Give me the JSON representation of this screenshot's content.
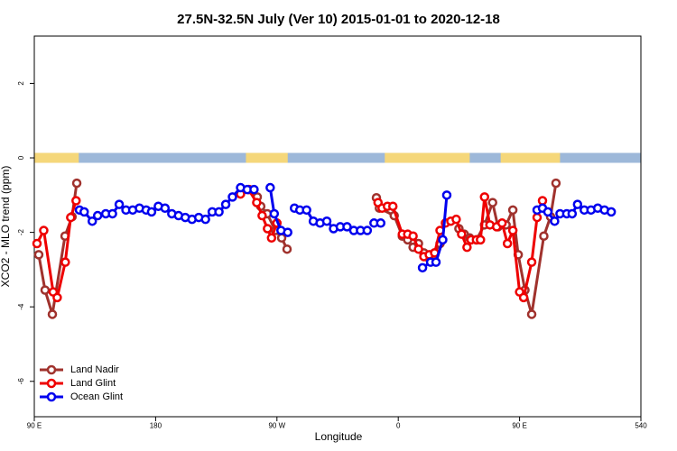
{
  "chart_data": {
    "type": "line",
    "title": "27.5N-32.5N July (Ver 10)   2015-01-01 to 2020-12-18",
    "x_label": "Longitude",
    "y_label": "XCO2 - MLO trend (ppm)",
    "xlim": [
      90,
      540
    ],
    "ylim": [
      -6.95,
      3.27
    ],
    "xticks": [
      {
        "value": 90,
        "label": "90 E"
      },
      180,
      {
        "value": 270,
        "label": "90 W"
      },
      {
        "value": 360,
        "label": "0"
      },
      {
        "value": 450,
        "label": "90 E"
      },
      540
    ],
    "yticks": [
      2,
      0,
      -2,
      -4,
      -6
    ],
    "legend": "lower left",
    "surface_band": {
      "ocean_color": "#9db8d9",
      "land_color": "#f5d77a",
      "land": [
        [
          90,
          123
        ],
        [
          247,
          278
        ],
        [
          350,
          413
        ],
        [
          436,
          480
        ]
      ]
    },
    "series": [
      {
        "name": "Land Nadir",
        "color": "#a0322d",
        "x": [
          93.3,
          98,
          103.4,
          112.8,
          118,
          121.5,
          null,
          249.4,
          255.4,
          258,
          262.8,
          268.8,
          273.5,
          277.5,
          null,
          343.8,
          346,
          357,
          363,
          367,
          371,
          375,
          379,
          383,
          387,
          391,
          null,
          405,
          409,
          413,
          418,
          424,
          430,
          434,
          440,
          445,
          449,
          454,
          459,
          468,
          473,
          477
        ],
        "values": [
          -2.6,
          -3.55,
          -4.2,
          -2.1,
          -1.58,
          -0.68,
          null,
          -0.85,
          -1.05,
          -1.3,
          -1.5,
          -1.95,
          -2.15,
          -2.45,
          null,
          -1.07,
          -1.35,
          -1.55,
          -2.1,
          -2.2,
          -2.4,
          -2.3,
          -2.55,
          -2.7,
          -2.55,
          -2.3,
          null,
          -1.9,
          -2.05,
          -2.15,
          -2.2,
          -1.8,
          -1.2,
          -1.85,
          -1.8,
          -1.4,
          -2.6,
          -3.55,
          -4.2,
          -2.1,
          -1.58,
          -0.68
        ]
      },
      {
        "name": "Land Glint",
        "color": "#ee0000",
        "x": [
          92,
          97,
          104,
          107,
          113,
          117,
          121,
          null,
          243,
          249,
          255,
          259,
          263,
          266,
          270,
          null,
          345,
          348,
          352,
          356,
          363,
          367,
          371,
          375,
          379,
          383,
          387,
          391,
          395,
          399,
          403,
          407,
          411,
          414,
          418,
          421,
          424,
          428,
          433,
          437,
          441,
          445,
          450,
          453,
          459,
          463,
          467
        ],
        "values": [
          -2.3,
          -1.95,
          -3.6,
          -3.75,
          -2.8,
          -1.6,
          -1.15,
          null,
          -0.97,
          -0.85,
          -1.2,
          -1.55,
          -1.9,
          -2.15,
          -1.75,
          null,
          -1.2,
          -1.35,
          -1.3,
          -1.3,
          -2.05,
          -2.05,
          -2.1,
          -2.45,
          -2.65,
          -2.6,
          -2.55,
          -1.95,
          -1.75,
          -1.7,
          -1.65,
          -2.05,
          -2.4,
          -2.2,
          -2.2,
          -2.2,
          -1.05,
          -1.8,
          -1.85,
          -1.75,
          -2.3,
          -1.95,
          -3.6,
          -3.75,
          -2.8,
          -1.6,
          -1.15
        ]
      },
      {
        "name": "Ocean Glint",
        "color": "#0000ee",
        "x": [
          123.5,
          127,
          133,
          137,
          143,
          148,
          153,
          158,
          163,
          168,
          173,
          177,
          182,
          187,
          192,
          197,
          202,
          207,
          212,
          217,
          222,
          227,
          232,
          237,
          243,
          248,
          253,
          null,
          265,
          268,
          273,
          278,
          null,
          283,
          287,
          292,
          297,
          302,
          307,
          312,
          317,
          322,
          327,
          332,
          337,
          null,
          342,
          347,
          null,
          378,
          384,
          388,
          393,
          396,
          null,
          463,
          467,
          471,
          476,
          480,
          485,
          489,
          493,
          498,
          503,
          508,
          513,
          518
        ],
        "values": [
          -1.4,
          -1.45,
          -1.7,
          -1.55,
          -1.5,
          -1.5,
          -1.25,
          -1.4,
          -1.4,
          -1.35,
          -1.4,
          -1.45,
          -1.3,
          -1.35,
          -1.5,
          -1.55,
          -1.6,
          -1.65,
          -1.6,
          -1.65,
          -1.45,
          -1.45,
          -1.25,
          -1.05,
          -0.8,
          -0.85,
          -0.85,
          null,
          -0.8,
          -1.5,
          -1.95,
          -2.0,
          null,
          -1.35,
          -1.4,
          -1.4,
          -1.7,
          -1.75,
          -1.7,
          -1.9,
          -1.85,
          -1.85,
          -1.95,
          -1.95,
          -1.95,
          null,
          -1.75,
          -1.75,
          null,
          -2.95,
          -2.8,
          -2.8,
          -2.2,
          -1.0,
          null,
          -1.4,
          -1.35,
          -1.45,
          -1.7,
          -1.5,
          -1.5,
          -1.5,
          -1.25,
          -1.4,
          -1.4,
          -1.35,
          -1.4,
          -1.45
        ]
      }
    ]
  }
}
